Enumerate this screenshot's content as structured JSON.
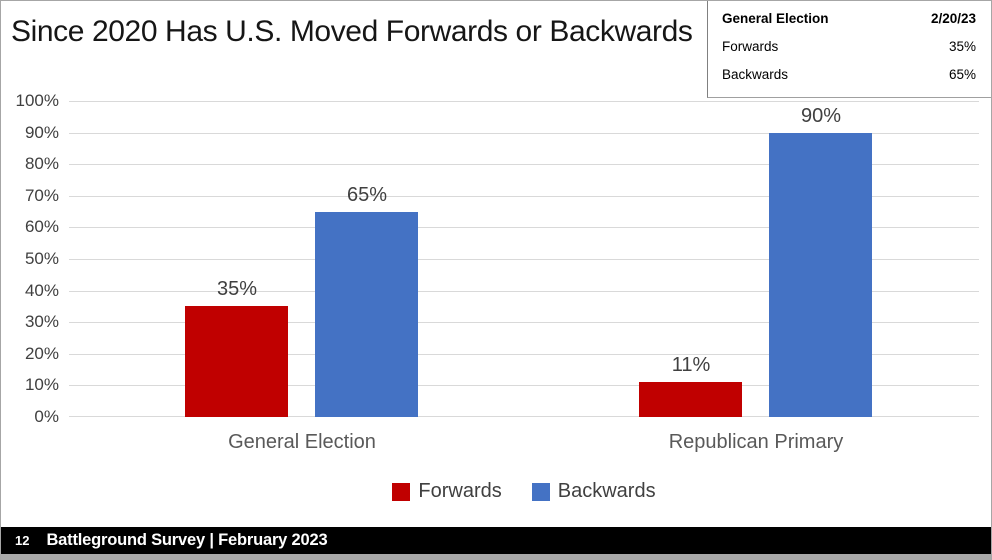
{
  "slide": {
    "title": "Since 2020 Has U.S. Moved Forwards or Backwards"
  },
  "summary_table": {
    "header": {
      "label": "General Election",
      "value": "2/20/23"
    },
    "rows": [
      {
        "label": "Forwards",
        "value": "35%"
      },
      {
        "label": "Backwards",
        "value": "65%"
      }
    ]
  },
  "chart_data": {
    "type": "bar",
    "title": "Since 2020 Has U.S. Moved Forwards or Backwards",
    "categories": [
      "General Election",
      "Republican Primary"
    ],
    "series": [
      {
        "name": "Forwards",
        "color": "#c00000",
        "values": [
          35,
          11
        ],
        "labels": [
          "35%",
          "11%"
        ]
      },
      {
        "name": "Backwards",
        "color": "#4472c4",
        "values": [
          65,
          90
        ],
        "labels": [
          "65%",
          "90%"
        ]
      }
    ],
    "ylim": [
      0,
      100
    ],
    "yticks": [
      "0%",
      "10%",
      "20%",
      "30%",
      "40%",
      "50%",
      "60%",
      "70%",
      "80%",
      "90%",
      "100%"
    ],
    "grid": true,
    "legend_position": "bottom",
    "data_labels": true
  },
  "footer": {
    "page_number": "12",
    "text": "Battleground Survey | February 2023"
  },
  "colors": {
    "forwards": "#c00000",
    "backwards": "#4472c4",
    "gridline": "#d9d9d9",
    "axis_text": "#404040",
    "category_text": "#595959",
    "footer_bg": "#000000",
    "footer_text": "#ffffff"
  }
}
